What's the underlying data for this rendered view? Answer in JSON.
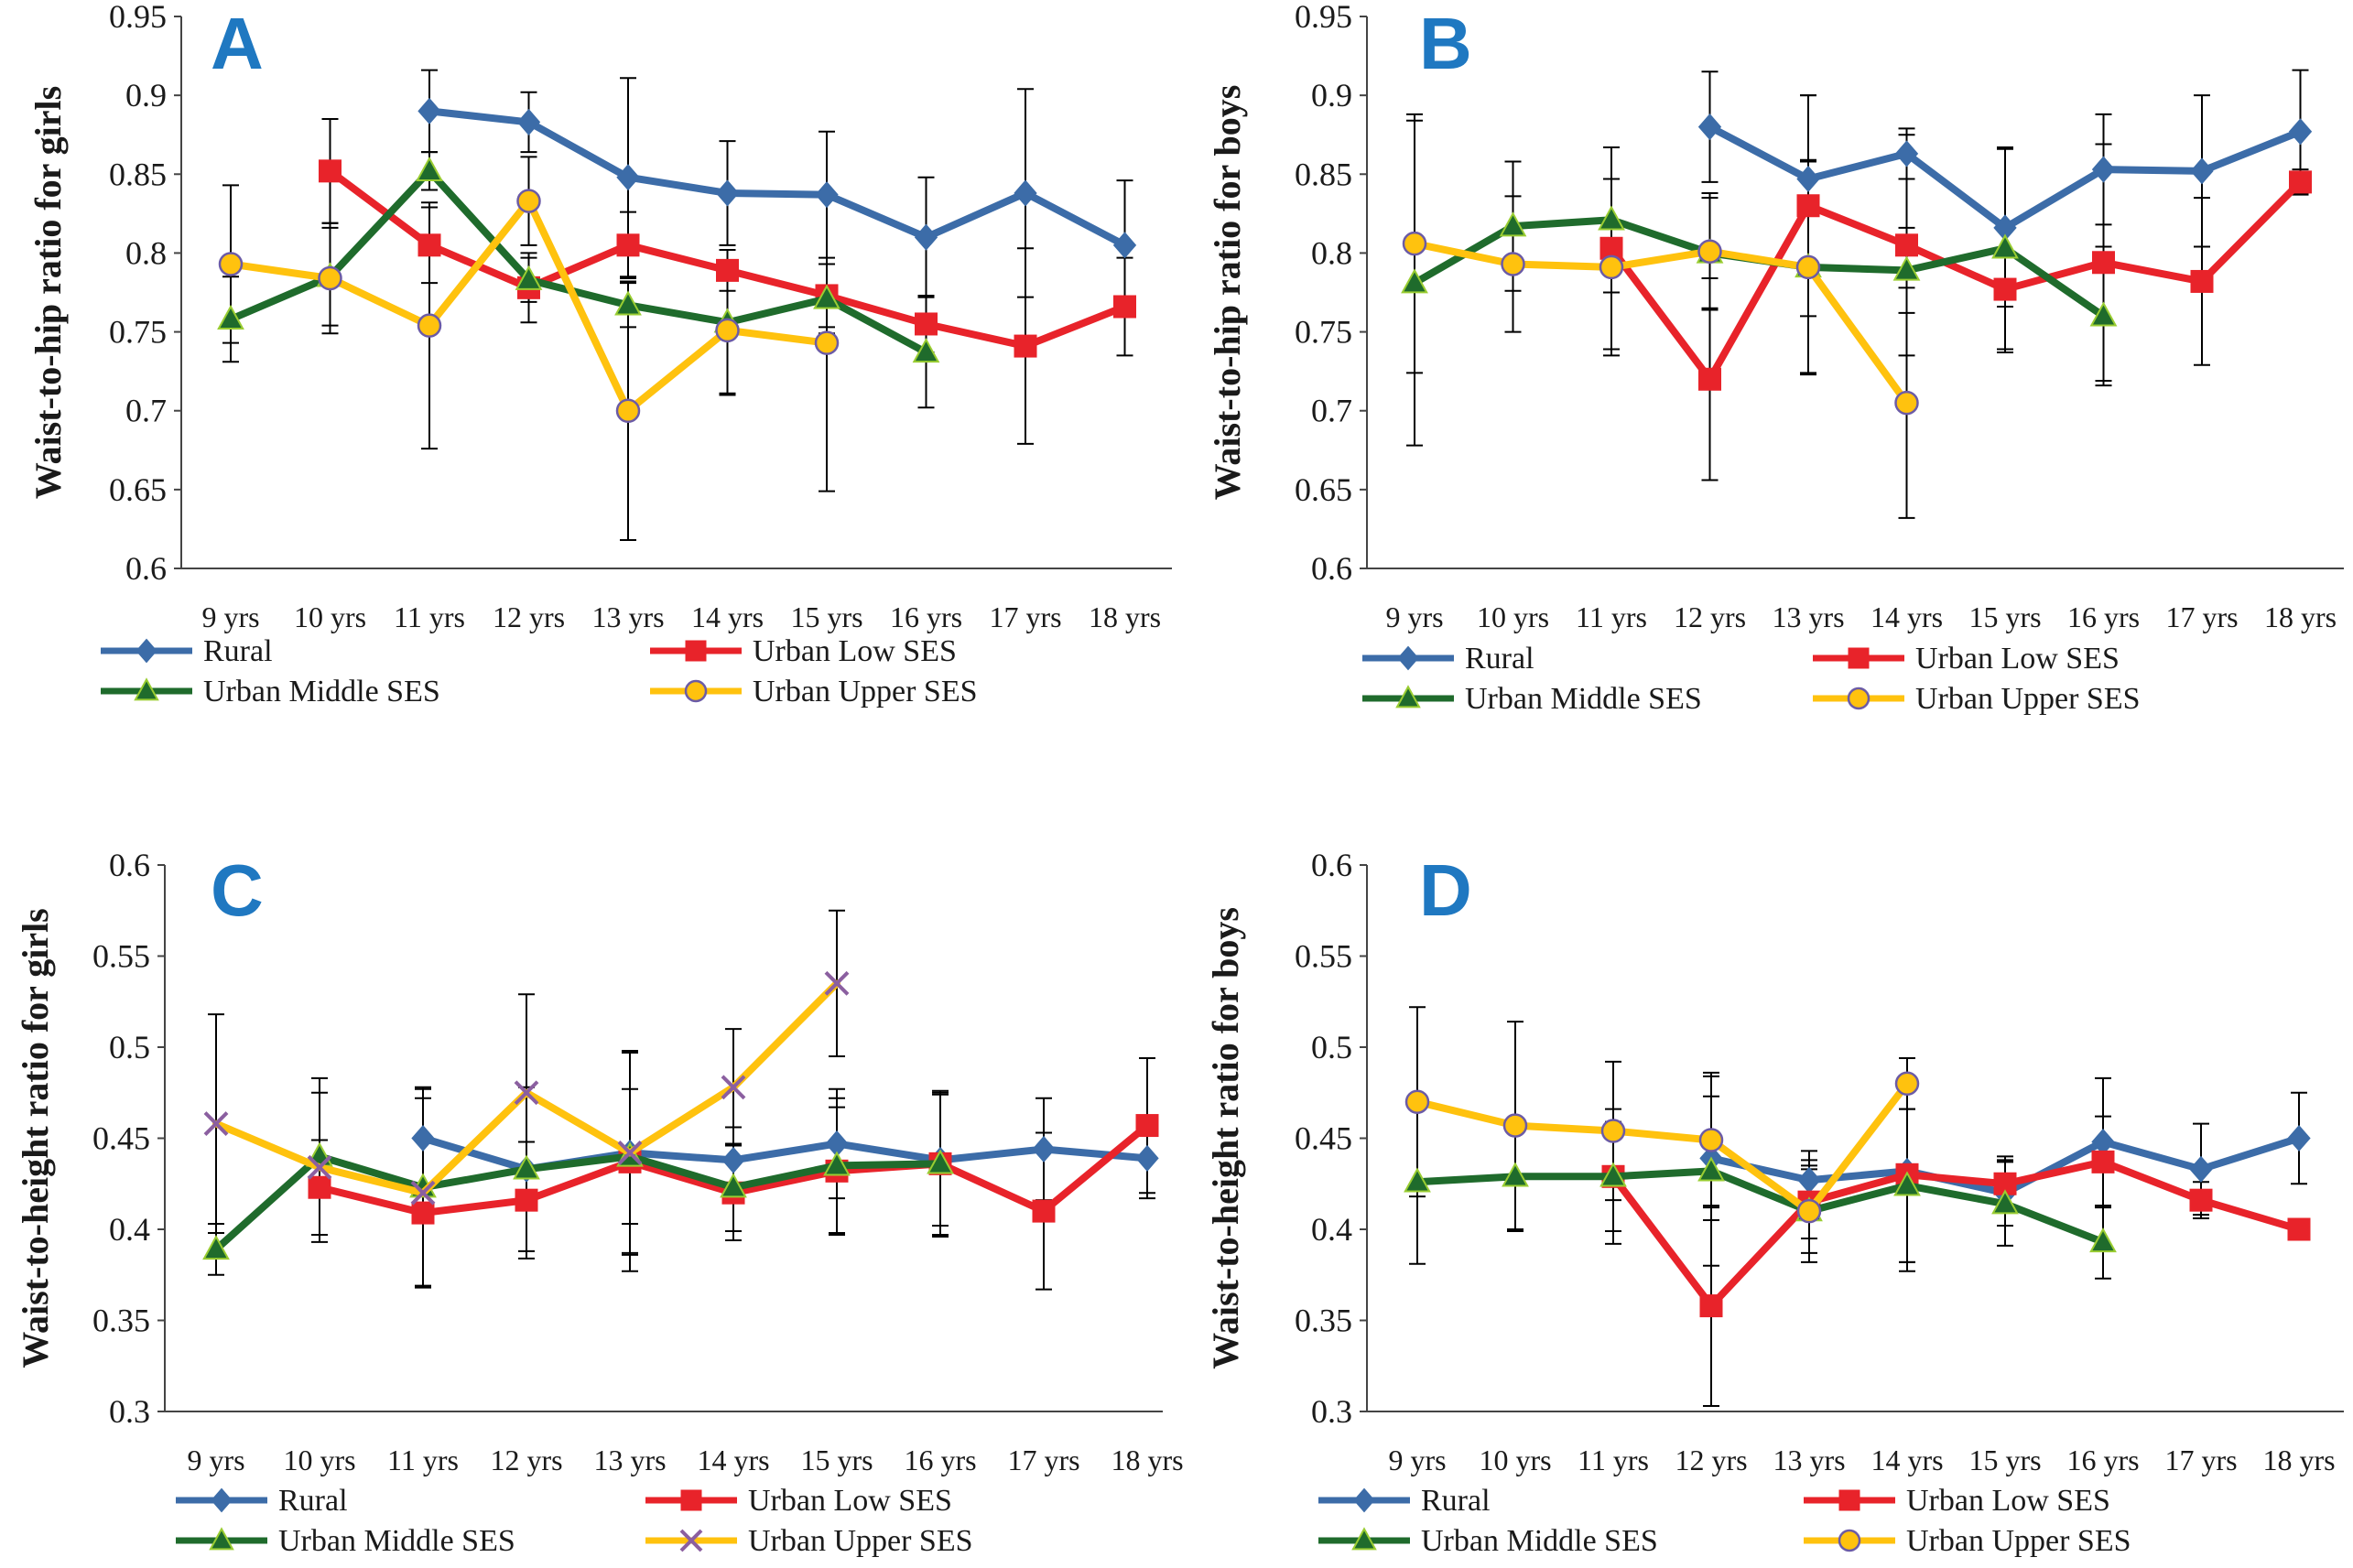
{
  "colors": {
    "rural": "#3c6ca8",
    "urban_low": "#e8232a",
    "urban_middle": "#1f6b2c",
    "urban_upper": "#ffc20e",
    "panel_letter": "#1f78c1",
    "axis": "#000000",
    "error_bar": "#000000"
  },
  "chart_data": [
    {
      "panel": "A",
      "type": "line",
      "ylabel": "Waist-to-hip ratio for girls",
      "ylim": [
        0.6,
        0.95
      ],
      "yticks": [
        "0.6",
        "0.65",
        "0.7",
        "0.75",
        "0.8",
        "0.85",
        "0.9",
        "0.95"
      ],
      "categories": [
        "9 yrs",
        "10 yrs",
        "11 yrs",
        "12 yrs",
        "13 yrs",
        "14 yrs",
        "15 yrs",
        "16 yrs",
        "17 yrs",
        "18 yrs"
      ],
      "grid": false,
      "legend": "bottom",
      "series": [
        {
          "name": "Rural",
          "marker": "diamond",
          "color_key": "rural",
          "values": [
            null,
            null,
            0.89,
            0.883,
            0.848,
            0.838,
            0.837,
            0.81,
            0.838,
            0.805
          ],
          "errors": [
            null,
            null,
            0.026,
            0.019,
            0.063,
            0.033,
            0.04,
            0.038,
            0.066,
            0.041
          ]
        },
        {
          "name": "Urban Low SES",
          "marker": "square",
          "color_key": "urban_low",
          "values": [
            null,
            0.852,
            0.805,
            0.778,
            0.805,
            0.789,
            0.773,
            0.755,
            0.741,
            0.766
          ],
          "errors": [
            null,
            0.033,
            0.024,
            0.022,
            0.021,
            0.013,
            0.02,
            0.018,
            0.062,
            0.031
          ]
        },
        {
          "name": "Urban Middle SES",
          "marker": "triangle",
          "color_key": "urban_middle",
          "values": [
            0.758,
            0.785,
            0.852,
            0.783,
            0.767,
            0.756,
            0.771,
            0.737,
            null,
            null
          ],
          "errors": [
            0.027,
            0.031,
            0.012,
            0.014,
            0.014,
            0.046,
            0.022,
            0.035,
            null,
            null
          ]
        },
        {
          "name": "Urban Upper SES",
          "marker": "circle",
          "color_key": "urban_upper",
          "values": [
            0.793,
            0.784,
            0.754,
            0.833,
            0.7,
            0.751,
            0.743,
            null,
            null,
            null
          ],
          "errors": [
            0.05,
            0.035,
            0.078,
            0.028,
            0.082,
            0.04,
            0.094,
            null,
            null,
            null
          ]
        }
      ]
    },
    {
      "panel": "B",
      "type": "line",
      "ylabel": "Waist-to-hip ratio for boys",
      "ylim": [
        0.6,
        0.95
      ],
      "yticks": [
        "0.6",
        "0.65",
        "0.7",
        "0.75",
        "0.8",
        "0.85",
        "0.9",
        "0.95"
      ],
      "categories": [
        "9 yrs",
        "10 yrs",
        "11 yrs",
        "12 yrs",
        "13 yrs",
        "14 yrs",
        "15 yrs",
        "16 yrs",
        "17 yrs",
        "18 yrs"
      ],
      "grid": false,
      "legend": "bottom",
      "series": [
        {
          "name": "Rural",
          "marker": "diamond",
          "color_key": "rural",
          "values": [
            null,
            null,
            null,
            0.88,
            0.847,
            0.863,
            0.816,
            0.853,
            0.852,
            0.877
          ],
          "errors": [
            null,
            null,
            null,
            0.035,
            0.053,
            0.016,
            0.05,
            0.035,
            0.048,
            0.039
          ]
        },
        {
          "name": "Urban Low SES",
          "marker": "square",
          "color_key": "urban_low",
          "values": [
            null,
            null,
            0.803,
            0.72,
            0.83,
            0.805,
            0.777,
            0.794,
            0.782,
            0.845
          ],
          "errors": [
            null,
            null,
            0.064,
            0.064,
            0.07,
            0.07,
            0.04,
            0.075,
            0.053,
            0.008
          ]
        },
        {
          "name": "Urban Middle SES",
          "marker": "triangle",
          "color_key": "urban_middle",
          "values": [
            0.781,
            0.817,
            0.821,
            0.8,
            0.791,
            0.789,
            0.803,
            0.76,
            null,
            null
          ],
          "errors": [
            0.103,
            0.041,
            0.046,
            0.035,
            0.067,
            0.027,
            0.064,
            0.044,
            null,
            null
          ]
        },
        {
          "name": "Urban Upper SES",
          "marker": "circle",
          "color_key": "urban_upper",
          "values": [
            0.806,
            0.793,
            0.791,
            0.801,
            0.791,
            0.705,
            null,
            null,
            null,
            null
          ],
          "errors": [
            0.082,
            0.043,
            0.056,
            0.037,
            0.068,
            0.073,
            null,
            null,
            null,
            null
          ]
        }
      ]
    },
    {
      "panel": "C",
      "type": "line",
      "ylabel": "Waist-to-height ratio for girls",
      "ylim": [
        0.3,
        0.6
      ],
      "yticks": [
        "0.3",
        "0.35",
        "0.4",
        "0.45",
        "0.5",
        "0.55",
        "0.6"
      ],
      "categories": [
        "9 yrs",
        "10 yrs",
        "11 yrs",
        "12 yrs",
        "13 yrs",
        "14 yrs",
        "15 yrs",
        "16 yrs",
        "17 yrs",
        "18 yrs"
      ],
      "grid": false,
      "legend": "bottom",
      "series": [
        {
          "name": "Rural",
          "marker": "diamond",
          "color_key": "rural",
          "values": [
            null,
            null,
            0.45,
            0.433,
            0.442,
            0.438,
            0.447,
            0.438,
            0.444,
            0.439
          ],
          "errors": [
            null,
            null,
            0.028,
            0.015,
            0.056,
            0.018,
            0.03,
            0.036,
            0.028,
            0.022
          ]
        },
        {
          "name": "Urban Low SES",
          "marker": "square",
          "color_key": "urban_low",
          "values": [
            null,
            0.423,
            0.409,
            0.416,
            0.437,
            0.42,
            0.432,
            0.436,
            0.41,
            0.457
          ],
          "errors": [
            null,
            0.026,
            0.04,
            0.032,
            0.06,
            0.026,
            0.035,
            0.04,
            0.043,
            0.037
          ]
        },
        {
          "name": "Urban Middle SES",
          "marker": "triangle",
          "color_key": "urban_middle",
          "values": [
            0.389,
            0.44,
            0.423,
            0.433,
            0.44,
            0.423,
            0.435,
            0.436,
            null,
            null
          ],
          "errors": [
            0.014,
            0.043,
            0.054,
            0.045,
            0.037,
            0.024,
            0.037,
            0.039,
            null,
            null
          ]
        },
        {
          "name": "Urban Upper SES",
          "marker": "x",
          "color_key": "urban_upper",
          "values": [
            0.458,
            0.434,
            0.42,
            0.475,
            0.442,
            0.478,
            0.535,
            null,
            null,
            null
          ],
          "errors": [
            0.06,
            0.041,
            0.052,
            0.054,
            0.055,
            0.032,
            0.04,
            null,
            null,
            null
          ]
        }
      ]
    },
    {
      "panel": "D",
      "type": "line",
      "ylabel": "Waist-to-height ratio for boys",
      "ylim": [
        0.3,
        0.6
      ],
      "yticks": [
        "0.3",
        "0.35",
        "0.4",
        "0.45",
        "0.5",
        "0.55",
        "0.6"
      ],
      "categories": [
        "9 yrs",
        "10 yrs",
        "11 yrs",
        "12 yrs",
        "13 yrs",
        "14 yrs",
        "15 yrs",
        "16 yrs",
        "17 yrs",
        "18 yrs"
      ],
      "grid": false,
      "legend": "bottom",
      "series": [
        {
          "name": "Rural",
          "marker": "diamond",
          "color_key": "rural",
          "values": [
            null,
            null,
            null,
            0.439,
            0.427,
            0.432,
            0.42,
            0.448,
            0.433,
            0.45
          ],
          "errors": [
            null,
            null,
            null,
            0.034,
            0.016,
            0.05,
            0.018,
            0.035,
            0.025,
            0.025
          ]
        },
        {
          "name": "Urban Low SES",
          "marker": "square",
          "color_key": "urban_low",
          "values": [
            null,
            null,
            0.429,
            0.358,
            0.415,
            0.43,
            0.425,
            0.437,
            0.416,
            0.4
          ],
          "errors": [
            null,
            null,
            0.037,
            0.055,
            0.02,
            0.053,
            0.015,
            0.025,
            0.01,
            0.0
          ]
        },
        {
          "name": "Urban Middle SES",
          "marker": "triangle",
          "color_key": "urban_middle",
          "values": [
            0.426,
            0.429,
            0.429,
            0.432,
            0.41,
            0.424,
            0.414,
            0.393,
            null,
            null
          ],
          "errors": [
            0.045,
            0.03,
            0.03,
            0.052,
            0.028,
            0.042,
            0.023,
            0.02,
            null,
            null
          ]
        },
        {
          "name": "Urban Upper SES",
          "marker": "circle",
          "color_key": "urban_upper",
          "values": [
            0.47,
            0.457,
            0.454,
            0.449,
            0.41,
            0.48,
            null,
            null,
            null,
            null
          ],
          "errors": [
            0.052,
            0.057,
            0.038,
            0.037,
            0.023,
            0.014,
            null,
            null,
            null,
            null
          ]
        }
      ]
    }
  ]
}
